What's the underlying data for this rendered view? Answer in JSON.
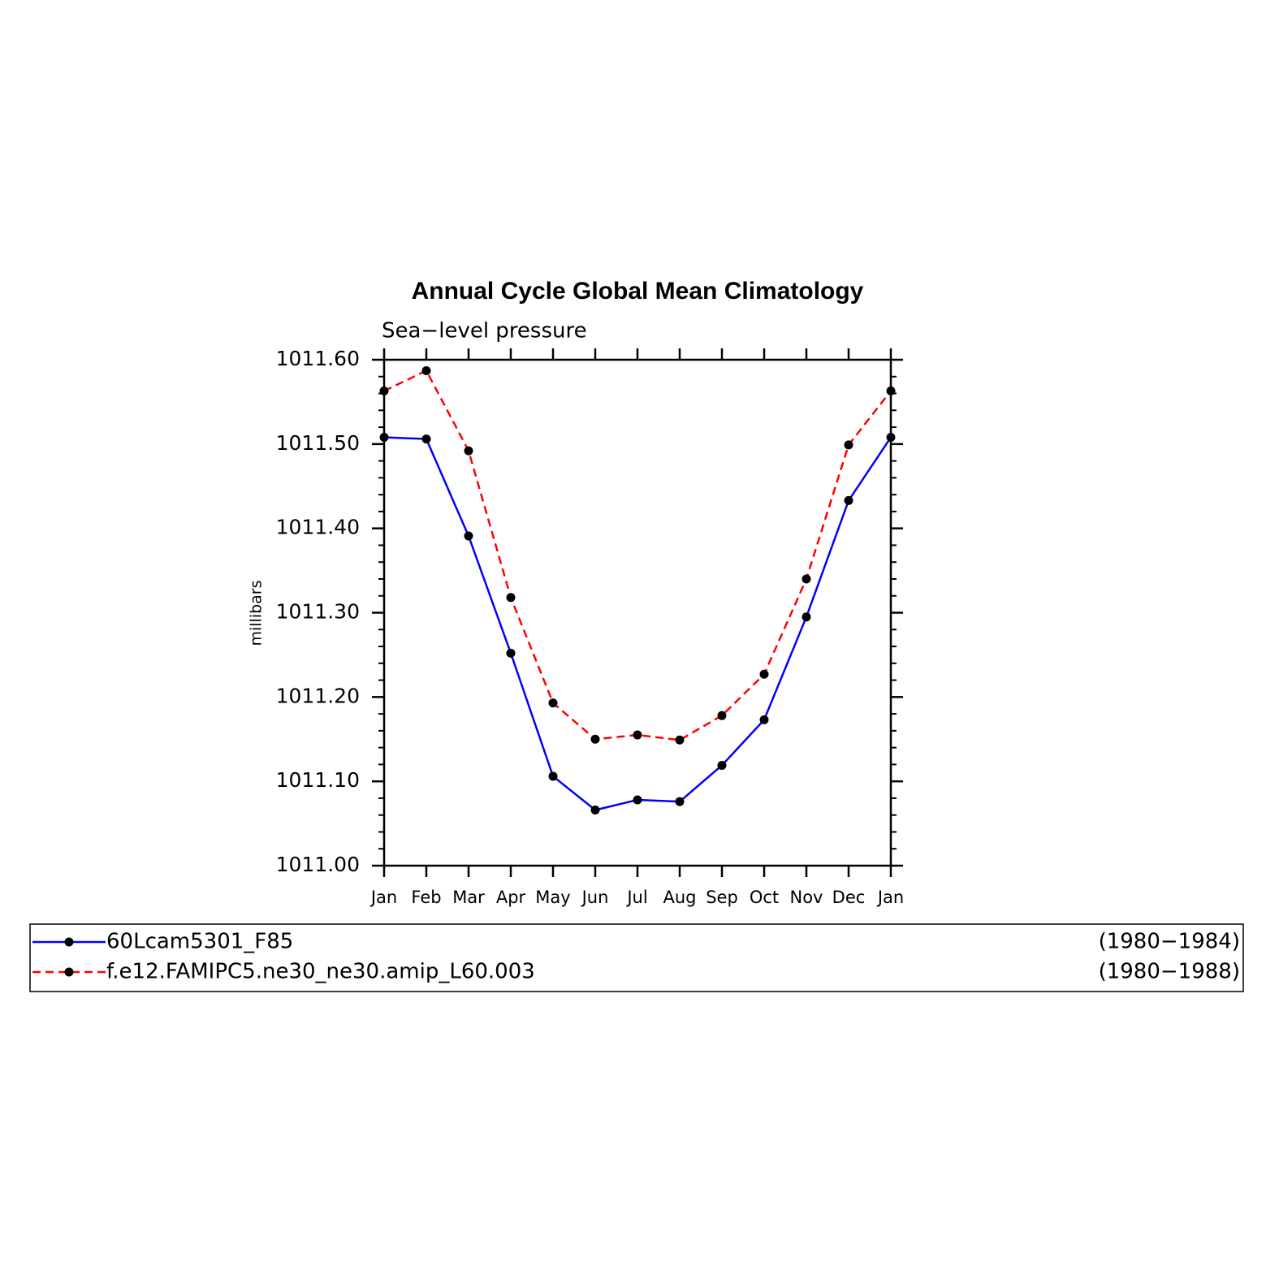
{
  "chart_data": {
    "type": "line",
    "title": "Annual Cycle Global Mean Climatology",
    "subtitle": "Sea−level pressure",
    "y_label": "millibars",
    "categories": [
      "Jan",
      "Feb",
      "Mar",
      "Apr",
      "May",
      "Jun",
      "Jul",
      "Aug",
      "Sep",
      "Oct",
      "Nov",
      "Dec",
      "Jan"
    ],
    "series": [
      {
        "name": "60Lcam5301_F85",
        "period": "(1980−1984)",
        "color": "#0000ff",
        "dash": false,
        "values": [
          1011.508,
          1011.506,
          1011.391,
          1011.252,
          1011.106,
          1011.066,
          1011.078,
          1011.076,
          1011.119,
          1011.173,
          1011.295,
          1011.433,
          1011.508
        ]
      },
      {
        "name": "f.e12.FAMIPC5.ne30_ne30.amip_L60.003",
        "period": "(1980−1988)",
        "color": "#ff0000",
        "dash": true,
        "values": [
          1011.563,
          1011.587,
          1011.492,
          1011.318,
          1011.193,
          1011.15,
          1011.155,
          1011.149,
          1011.178,
          1011.227,
          1011.34,
          1011.499,
          1011.563
        ]
      }
    ],
    "marker_color": "#000000",
    "ylim": [
      1011.0,
      1011.6
    ],
    "yticks": [
      {
        "value": 1011.0,
        "label": "1011.00"
      },
      {
        "value": 1011.1,
        "label": "1011.10"
      },
      {
        "value": 1011.2,
        "label": "1011.20"
      },
      {
        "value": 1011.3,
        "label": "1011.30"
      },
      {
        "value": 1011.4,
        "label": "1011.40"
      },
      {
        "value": 1011.5,
        "label": "1011.50"
      },
      {
        "value": 1011.6,
        "label": "1011.60"
      }
    ],
    "yminorticks": [
      1011.02,
      1011.04,
      1011.06,
      1011.08,
      1011.12,
      1011.14,
      1011.16,
      1011.18,
      1011.22,
      1011.24,
      1011.26,
      1011.28,
      1011.32,
      1011.34,
      1011.36,
      1011.38,
      1011.42,
      1011.44,
      1011.46,
      1011.48,
      1011.52,
      1011.54,
      1011.56,
      1011.58
    ],
    "legend": "bottom"
  }
}
